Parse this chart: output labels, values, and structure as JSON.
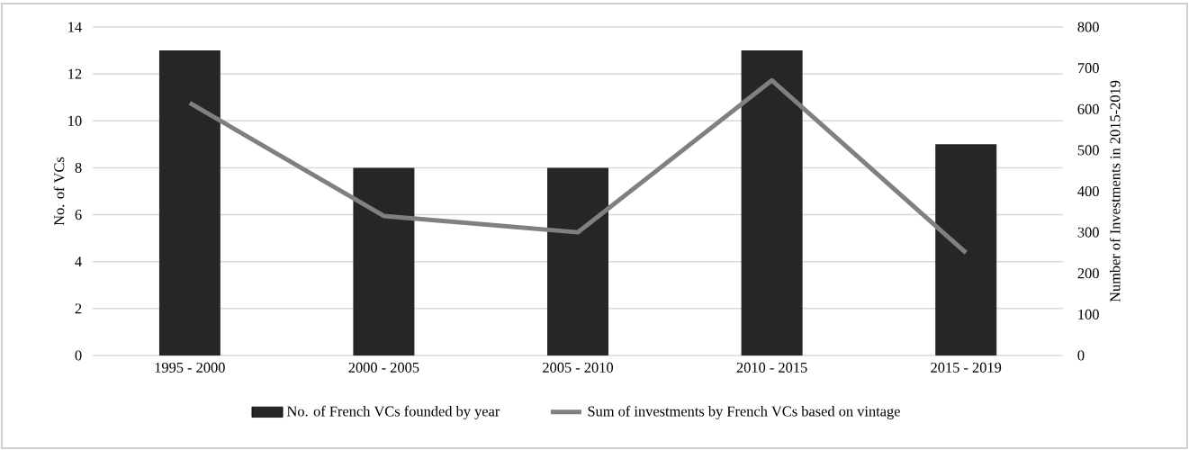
{
  "chart_data": {
    "type": "bar",
    "ylabel": "No. of VCs",
    "y2label": "Number of Investments in 2015-2019",
    "categories": [
      "1995 - 2000",
      "2000 - 2005",
      "2005 - 2010",
      "2010 - 2015",
      "2015 - 2019"
    ],
    "series": [
      {
        "name": "No. of French VCs founded by year",
        "color": "#262626",
        "values": [
          13,
          8,
          8,
          13,
          9
        ]
      },
      {
        "name": "Sum of investments by French VCs based on vintage",
        "type": "line",
        "axis": "y2",
        "color": "#808080",
        "values": [
          615,
          340,
          300,
          670,
          250
        ]
      }
    ],
    "ylim": [
      0,
      14
    ],
    "yticks": [
      0,
      2,
      4,
      6,
      8,
      10,
      12,
      14
    ],
    "y2lim": [
      0,
      800
    ],
    "y2ticks": [
      0,
      100,
      200,
      300,
      400,
      500,
      600,
      700,
      800
    ],
    "grid": "y",
    "legend": "bottom"
  }
}
